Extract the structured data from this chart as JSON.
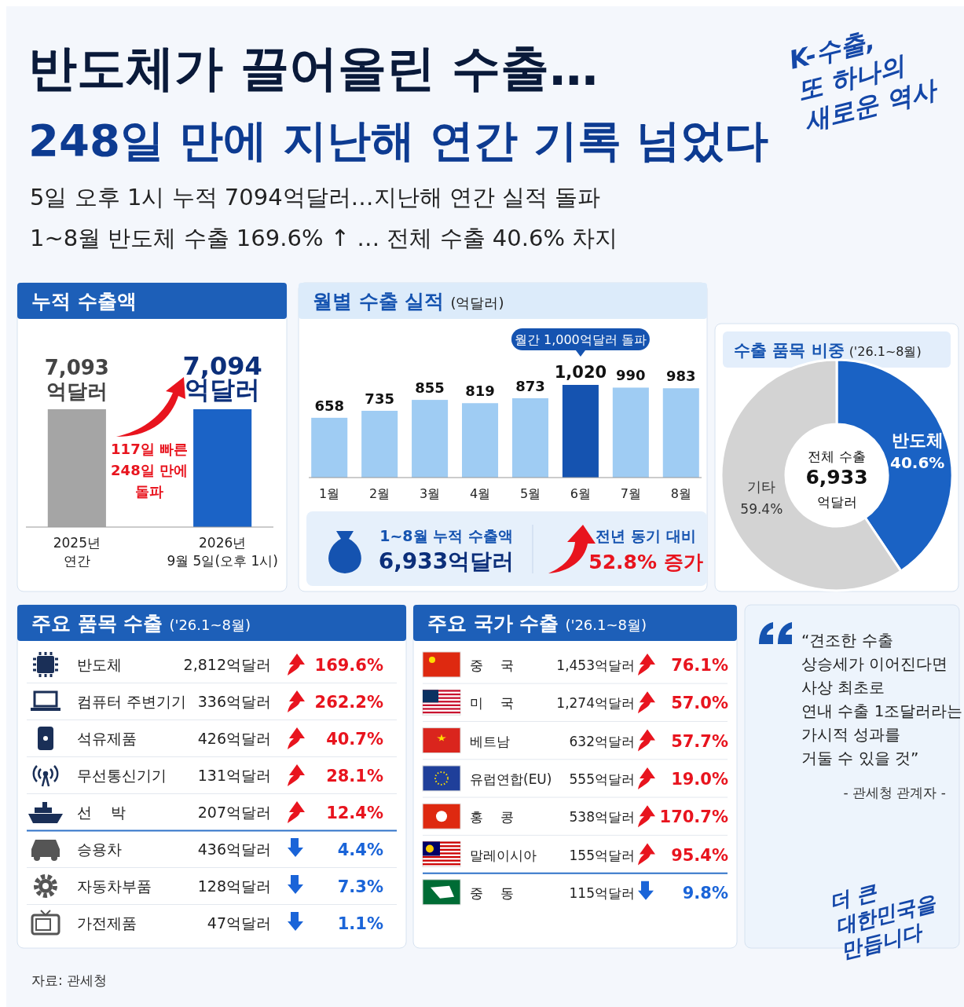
{
  "chart_data": [
    {
      "type": "other",
      "title": "반도체가 끌어올린 수출…\n248일 만에 지난해 연간 기록 넘었다",
      "annotations": [
        "5일 오후 1시 누적 7094억달러…지난해 연간 실적 돌파",
        "1~8월 반도체 수출 169.6% ↑ … 전체 수출 40.6% 차지",
        "K-수출,\n또 하나의\n새로운 역사",
        "자료: 관세청"
      ]
    },
    {
      "type": "bar",
      "title": "누적 수출액",
      "categories": [
        "2025년\n연간",
        "2026년\n9월 5일(오후 1시)"
      ],
      "values": [
        7093,
        7094
      ],
      "colors": [
        "#a5a5a5",
        "#1b63c6"
      ],
      "value_labels": [
        "7,093\n억달러",
        "7,094\n억달러"
      ],
      "annotations": [
        "117일 빠른\n248일 만에\n돌파"
      ]
    },
    {
      "type": "bar",
      "title": "월별 수출 실적",
      "subtitle": "(억달러)",
      "categories": [
        "1월",
        "2월",
        "3월",
        "4월",
        "5월",
        "6월",
        "7월",
        "8월"
      ],
      "values": [
        658,
        735,
        855,
        819,
        873,
        1020,
        990,
        983
      ],
      "colors": [
        "#9fccf3",
        "#9fccf3",
        "#9fccf3",
        "#9fccf3",
        "#9fccf3",
        "#1553b0",
        "#9fccf3",
        "#9fccf3"
      ],
      "value_labels": [
        "658",
        "735",
        "855",
        "819",
        "873",
        "1,020",
        "990",
        "983"
      ],
      "annotations": [
        "월간 1,000억달러 돌파",
        "1~8월 누적 수출액\n6,933억달러",
        "전년 동기 대비\n52.8% 증가"
      ]
    },
    {
      "type": "donut",
      "title": "수출 품목 비중",
      "subtitle": "('26.1~8월)",
      "categories": [
        "반도체",
        "기타"
      ],
      "values": [
        40.6,
        59.4
      ],
      "colors": [
        "#1a62c4",
        "#d3d3d3"
      ],
      "value_labels": [
        "40.6%",
        "59.4%"
      ],
      "annotations": [
        "전체 수출\n6,933\n억달러"
      ]
    },
    {
      "type": "other",
      "title": "주요 품목 수출",
      "subtitle": "('26.1~8월)",
      "categories": [
        "반도체",
        "컴퓨터 주변기기",
        "석유제품",
        "무선통신기기",
        "선    박",
        "승용차",
        "자동차부품",
        "가전제품"
      ],
      "series": [
        {
          "values": [
            2812,
            336,
            426,
            131,
            207,
            436,
            128,
            47
          ],
          "value_labels": [
            "2,812억달러",
            "336억달러",
            "426억달러",
            "131억달러",
            "207억달러",
            "436억달러",
            "128억달러",
            "47억달러"
          ]
        },
        {
          "values": [
            169.6,
            262.2,
            40.7,
            28.1,
            12.4,
            null,
            null,
            null
          ],
          "value_labels": [
            "169.6%",
            "262.2%",
            "40.7%",
            "28.1%",
            "12.4%",
            null,
            null,
            null
          ],
          "color": "#e8141e"
        },
        {
          "values": [
            null,
            null,
            null,
            null,
            null,
            4.4,
            7.3,
            1.1
          ],
          "value_labels": [
            null,
            null,
            null,
            null,
            null,
            "4.4%",
            "7.3%",
            "1.1%"
          ],
          "color": "#1a64d8"
        }
      ]
    },
    {
      "type": "other",
      "title": "주요 국가 수출",
      "subtitle": "('26.1~8월)",
      "categories": [
        "중    국",
        "미    국",
        "베트남",
        "유럽연합(EU)",
        "홍    콩",
        "말레이시아",
        "중    동"
      ],
      "series": [
        {
          "values": [
            1453,
            1274,
            632,
            555,
            538,
            155,
            115
          ],
          "value_labels": [
            "1,453억달러",
            "1,274억달러",
            "632억달러",
            "555억달러",
            "538억달러",
            "155억달러",
            "115억달러"
          ]
        },
        {
          "values": [
            76.1,
            57.0,
            57.7,
            19.0,
            170.7,
            95.4,
            null
          ],
          "value_labels": [
            "76.1%",
            "57.0%",
            "57.7%",
            "19.0%",
            "170.7%",
            "95.4%",
            null
          ],
          "color": "#e8141e"
        },
        {
          "values": [
            null,
            null,
            null,
            null,
            null,
            null,
            9.8
          ],
          "value_labels": [
            null,
            null,
            null,
            null,
            null,
            null,
            "9.8%"
          ],
          "color": "#1a64d8"
        }
      ]
    },
    {
      "type": "other",
      "annotations": [
        "“견조한 수출\n상승세가 이어진다면\n사상 최초로\n연내 수출 1조달러라는\n가시적 성과를\n거둘 수 있을 것”",
        "- 관세청 관계자 -",
        "더 큰\n대한민국을\n만듭니다"
      ]
    }
  ]
}
